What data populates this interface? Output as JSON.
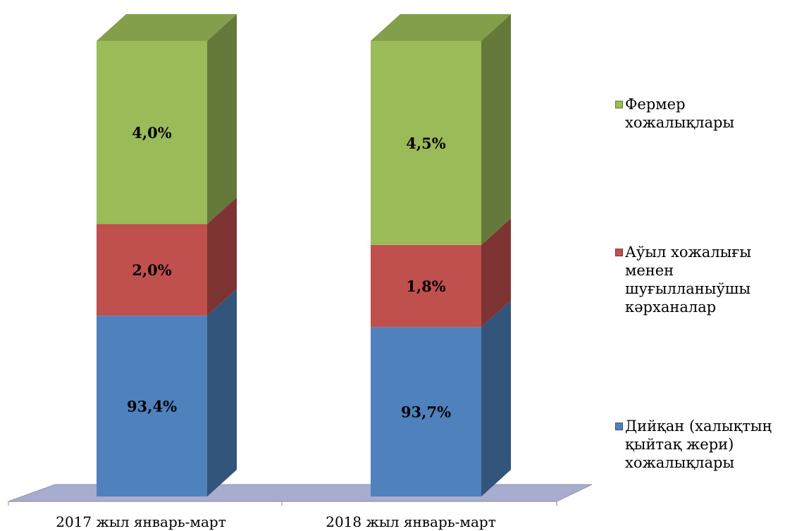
{
  "chart_data": {
    "type": "bar",
    "stacked": true,
    "categories": [
      "2017 жыл январь-март",
      "2018 жыл январь-март"
    ],
    "series": [
      {
        "name": "Дийқан (халықтың қыйтақ жери) хожалықлары",
        "values": [
          93.4,
          93.7
        ],
        "labels": [
          "93,4%",
          "93,7%"
        ],
        "color": "#4f81bd"
      },
      {
        "name": "Аўыл хожалығы менен шуғылланыўшы кәрханалар",
        "values": [
          2.0,
          1.8
        ],
        "labels": [
          "2,0%",
          "1,8%"
        ],
        "color": "#c0504d"
      },
      {
        "name": "Фермер хожалықлары",
        "values": [
          4.0,
          4.5
        ],
        "labels": [
          "4,0%",
          "4,5%"
        ],
        "color": "#9bbb59"
      }
    ],
    "legend_position": "right",
    "grid": false
  },
  "legend": [
    {
      "label": "Фермер хожалықлары",
      "color": "#9bbb59",
      "icon": "green-square-icon"
    },
    {
      "label": "Аўыл хожалығы менен шуғылланыўшы кәрханалар",
      "color": "#c0504d",
      "icon": "red-square-icon"
    },
    {
      "label": "Дийқан (халықтың қыйтақ жери) хожалықлары",
      "color": "#4f81bd",
      "icon": "blue-square-icon"
    }
  ]
}
